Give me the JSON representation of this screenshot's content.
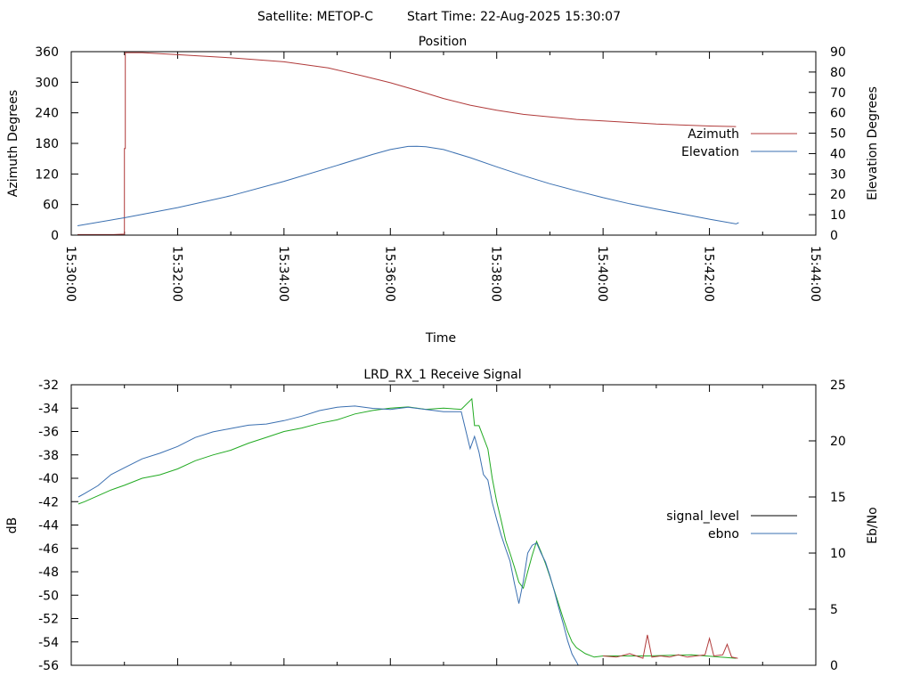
{
  "header": {
    "satellite_label": "Satellite: METOP-C",
    "start_time_label": "Start Time: 22-Aug-2025 15:30:07"
  },
  "chart_data": [
    {
      "type": "line",
      "title": "Position",
      "xlabel": "Time",
      "ylabel": "Azimuth Degrees",
      "y2label": "Elevation Degrees",
      "x_range_seconds": [
        0,
        840
      ],
      "x_tick_labels": [
        "15:30:00",
        "15:32:00",
        "15:34:00",
        "15:36:00",
        "15:38:00",
        "15:40:00",
        "15:42:00",
        "15:44:00"
      ],
      "ylim": [
        0,
        360
      ],
      "y_ticks": [
        0,
        60,
        120,
        180,
        240,
        300,
        360
      ],
      "y2lim": [
        0,
        90
      ],
      "y2_ticks": [
        0,
        10,
        20,
        30,
        40,
        50,
        60,
        70,
        80,
        90
      ],
      "legend_position": "right",
      "grid": false,
      "series": [
        {
          "name": "Azimuth",
          "axis": "left",
          "color": "#b03a3a",
          "points": [
            [
              7,
              1
            ],
            [
              48,
              1
            ],
            [
              60,
              2
            ],
            [
              60,
              170
            ],
            [
              61,
              170
            ],
            [
              61,
              358
            ],
            [
              80,
              358
            ],
            [
              120,
              354
            ],
            [
              180,
              348
            ],
            [
              240,
              340
            ],
            [
              290,
              328
            ],
            [
              330,
              312
            ],
            [
              360,
              299
            ],
            [
              390,
              284
            ],
            [
              420,
              268
            ],
            [
              450,
              255
            ],
            [
              480,
              245
            ],
            [
              510,
              237
            ],
            [
              540,
              232
            ],
            [
              570,
              227
            ],
            [
              600,
              224
            ],
            [
              630,
              221
            ],
            [
              660,
              218
            ],
            [
              690,
              216
            ],
            [
              720,
              214
            ],
            [
              750,
              213
            ]
          ]
        },
        {
          "name": "Elevation",
          "axis": "right",
          "color": "#3a6fb0",
          "points": [
            [
              7,
              4.6
            ],
            [
              60,
              8.5
            ],
            [
              120,
              13.5
            ],
            [
              180,
              19.3
            ],
            [
              240,
              26.4
            ],
            [
              300,
              34.2
            ],
            [
              340,
              39.6
            ],
            [
              360,
              42
            ],
            [
              380,
              43.5
            ],
            [
              390,
              43.6
            ],
            [
              400,
              43.4
            ],
            [
              420,
              42
            ],
            [
              450,
              38
            ],
            [
              480,
              33.5
            ],
            [
              510,
              29.2
            ],
            [
              540,
              25.2
            ],
            [
              570,
              21.7
            ],
            [
              600,
              18.4
            ],
            [
              630,
              15.4
            ],
            [
              660,
              12.8
            ],
            [
              690,
              10.3
            ],
            [
              720,
              7.8
            ],
            [
              750,
              5.5
            ],
            [
              753,
              6.1
            ]
          ]
        }
      ]
    },
    {
      "type": "line",
      "title": "LRD_RX_1 Receive Signal",
      "xlabel": "",
      "ylabel": "dB",
      "y2label": "Eb/No",
      "x_range_seconds": [
        0,
        840
      ],
      "ylim": [
        -56,
        -32
      ],
      "y_ticks": [
        -56,
        -54,
        -52,
        -50,
        -48,
        -46,
        -44,
        -42,
        -40,
        -38,
        -36,
        -34,
        -32
      ],
      "y2lim": [
        0,
        25
      ],
      "y2_ticks": [
        0,
        5,
        10,
        15,
        20,
        25
      ],
      "legend_position": "right",
      "grid": false,
      "series": [
        {
          "name": "signal_level",
          "axis": "left",
          "color": "#22aa22",
          "points": [
            [
              8,
              -42.2
            ],
            [
              15,
              -42
            ],
            [
              30,
              -41.5
            ],
            [
              45,
              -41
            ],
            [
              60,
              -40.6
            ],
            [
              80,
              -40
            ],
            [
              100,
              -39.7
            ],
            [
              120,
              -39.2
            ],
            [
              140,
              -38.5
            ],
            [
              160,
              -38
            ],
            [
              180,
              -37.6
            ],
            [
              200,
              -37
            ],
            [
              220,
              -36.5
            ],
            [
              240,
              -36
            ],
            [
              260,
              -35.7
            ],
            [
              280,
              -35.3
            ],
            [
              300,
              -35
            ],
            [
              320,
              -34.5
            ],
            [
              340,
              -34.2
            ],
            [
              360,
              -34
            ],
            [
              380,
              -33.9
            ],
            [
              400,
              -34.1
            ],
            [
              420,
              -34
            ],
            [
              440,
              -34.1
            ],
            [
              452,
              -33.2
            ],
            [
              455,
              -35.5
            ],
            [
              460,
              -35.5
            ],
            [
              465,
              -36.5
            ],
            [
              470,
              -37.5
            ],
            [
              475,
              -40
            ],
            [
              480,
              -42
            ],
            [
              485,
              -43.6
            ],
            [
              490,
              -45.3
            ],
            [
              495,
              -46.4
            ],
            [
              500,
              -47.6
            ],
            [
              505,
              -48.9
            ],
            [
              510,
              -49.4
            ],
            [
              515,
              -48
            ],
            [
              520,
              -46.6
            ],
            [
              525,
              -45.4
            ],
            [
              530,
              -46.3
            ],
            [
              535,
              -47.3
            ],
            [
              540,
              -48.4
            ],
            [
              545,
              -49.6
            ],
            [
              550,
              -50.8
            ],
            [
              555,
              -52
            ],
            [
              560,
              -53.1
            ],
            [
              565,
              -54
            ],
            [
              570,
              -54.5
            ],
            [
              580,
              -55
            ],
            [
              590,
              -55.3
            ],
            [
              600,
              -55.2
            ],
            [
              650,
              -55.2
            ],
            [
              700,
              -55.1
            ],
            [
              750,
              -55.4
            ]
          ]
        },
        {
          "name": "",
          "axis": "left",
          "color": "#b03a3a",
          "points": [
            [
              600,
              -55.2
            ],
            [
              615,
              -55.3
            ],
            [
              630,
              -55.0
            ],
            [
              645,
              -55.4
            ],
            [
              650,
              -53.4
            ],
            [
              655,
              -55.3
            ],
            [
              665,
              -55.2
            ],
            [
              675,
              -55.3
            ],
            [
              685,
              -55.1
            ],
            [
              695,
              -55.3
            ],
            [
              705,
              -55.2
            ],
            [
              715,
              -55.1
            ],
            [
              720,
              -53.7
            ],
            [
              725,
              -55.2
            ],
            [
              735,
              -55.1
            ],
            [
              740,
              -54.2
            ],
            [
              745,
              -55.3
            ],
            [
              752,
              -55.4
            ]
          ]
        },
        {
          "name": "ebno",
          "axis": "right",
          "color": "#3a6fb0",
          "points": [
            [
              8,
              15
            ],
            [
              15,
              15.3
            ],
            [
              30,
              16
            ],
            [
              45,
              17
            ],
            [
              60,
              17.6
            ],
            [
              80,
              18.4
            ],
            [
              100,
              18.9
            ],
            [
              120,
              19.5
            ],
            [
              140,
              20.3
            ],
            [
              160,
              20.8
            ],
            [
              180,
              21.1
            ],
            [
              200,
              21.4
            ],
            [
              220,
              21.5
            ],
            [
              240,
              21.8
            ],
            [
              260,
              22.2
            ],
            [
              280,
              22.7
            ],
            [
              300,
              23
            ],
            [
              320,
              23.1
            ],
            [
              340,
              22.9
            ],
            [
              360,
              22.8
            ],
            [
              380,
              23
            ],
            [
              400,
              22.8
            ],
            [
              420,
              22.6
            ],
            [
              440,
              22.6
            ],
            [
              450,
              19.3
            ],
            [
              455,
              20.4
            ],
            [
              460,
              19
            ],
            [
              465,
              17
            ],
            [
              470,
              16.5
            ],
            [
              475,
              14.5
            ],
            [
              480,
              13
            ],
            [
              485,
              11.6
            ],
            [
              490,
              10.4
            ],
            [
              495,
              9.3
            ],
            [
              500,
              7.3
            ],
            [
              505,
              5.5
            ],
            [
              510,
              7.5
            ],
            [
              515,
              10
            ],
            [
              520,
              10.7
            ],
            [
              525,
              10.9
            ],
            [
              530,
              10
            ],
            [
              535,
              9.2
            ],
            [
              540,
              8
            ],
            [
              545,
              6.6
            ],
            [
              550,
              5.1
            ],
            [
              555,
              3.7
            ],
            [
              560,
              2.2
            ],
            [
              565,
              1
            ],
            [
              570,
              0.3
            ],
            [
              572,
              0
            ]
          ]
        }
      ]
    }
  ]
}
